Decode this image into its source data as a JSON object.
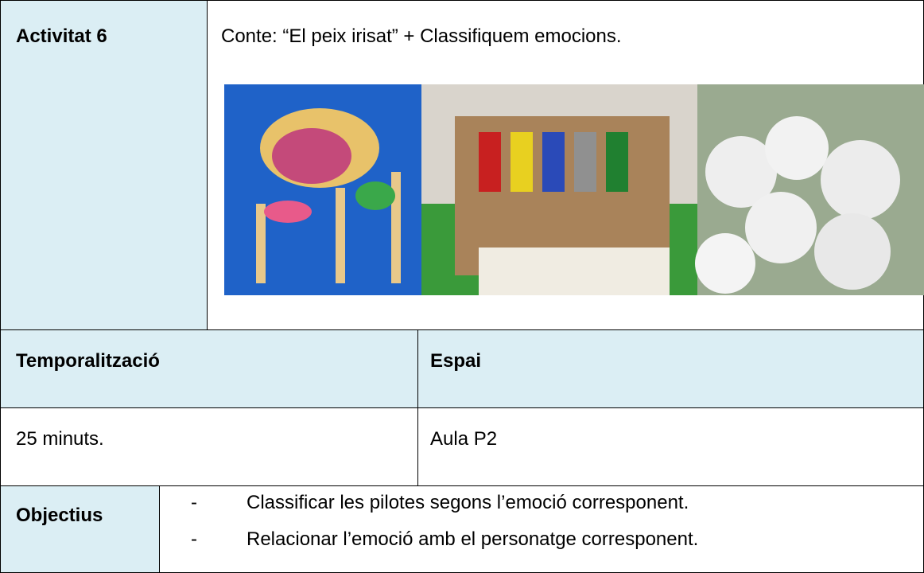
{
  "activity": {
    "label": "Activitat 6",
    "title": "Conte: “El peix irisat” + Classifiquem emocions."
  },
  "schedule": {
    "header": "Temporalització",
    "value": "25 minuts."
  },
  "space": {
    "header": "Espai",
    "value": "Aula P2"
  },
  "objectives": {
    "label": "Objectius",
    "marker": "-",
    "items": [
      "Classificar les pilotes segons l’emoció corresponent.",
      "Relacionar l’emoció amb el personatge corresponent."
    ]
  }
}
